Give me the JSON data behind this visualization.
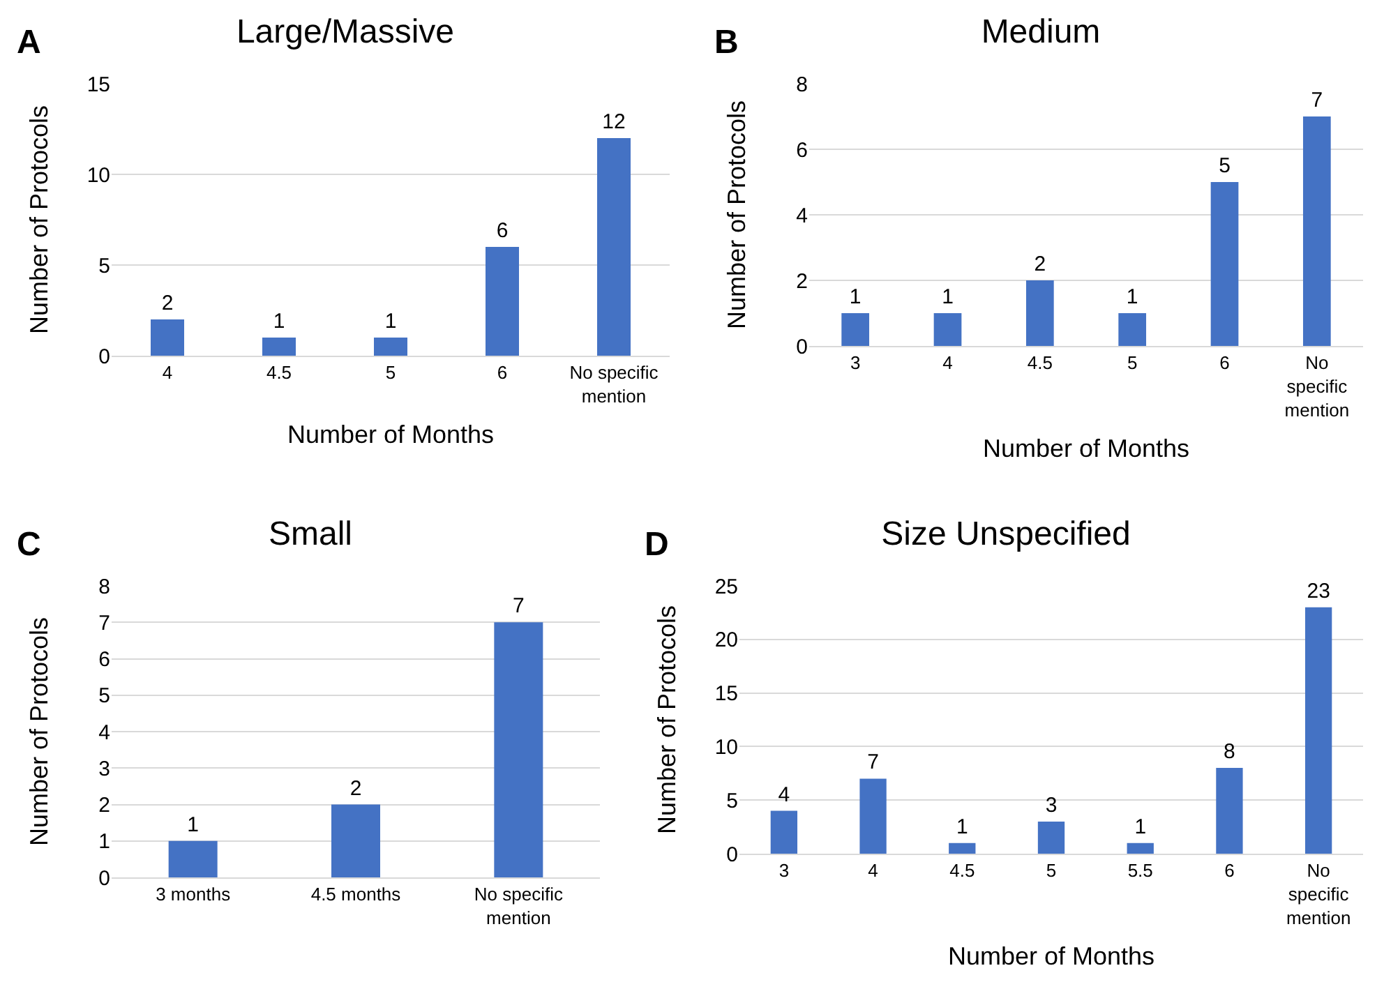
{
  "chart_data": [
    {
      "type": "bar",
      "title": "Large/Massive",
      "xlabel": "Number of Months",
      "ylabel": "Number of Protocols",
      "annotations": [
        "A"
      ],
      "categories": [
        "4",
        "4.5",
        "5",
        "6",
        "No specific mention"
      ],
      "values": [
        2,
        1,
        1,
        6,
        12
      ],
      "color": "#4472c4",
      "ylim": [
        0,
        15
      ],
      "yticks": [
        0,
        5,
        10,
        15
      ],
      "grid": "y",
      "data_labels": true
    },
    {
      "type": "bar",
      "title": "Medium",
      "xlabel": "Number of Months",
      "ylabel": "Number of Protocols",
      "annotations": [
        "B"
      ],
      "categories": [
        "3",
        "4",
        "4.5",
        "5",
        "6",
        "No specific mention"
      ],
      "values": [
        1,
        1,
        2,
        1,
        5,
        7
      ],
      "color": "#4472c4",
      "ylim": [
        0,
        8
      ],
      "yticks": [
        0,
        2,
        4,
        6,
        8
      ],
      "grid": "y",
      "data_labels": true
    },
    {
      "type": "bar",
      "title": "Small",
      "ylabel": "Number of Protocols",
      "annotations": [
        "C"
      ],
      "categories": [
        "3 months",
        "4.5 months",
        "No specific mention"
      ],
      "values": [
        1,
        2,
        7
      ],
      "color": "#4472c4",
      "ylim": [
        0,
        8
      ],
      "yticks": [
        0,
        1,
        2,
        3,
        4,
        5,
        6,
        7,
        8
      ],
      "grid": "y",
      "data_labels": true
    },
    {
      "type": "bar",
      "title": "Size Unspecified",
      "xlabel": "Number of Months",
      "ylabel": "Number of Protocols",
      "annotations": [
        "D"
      ],
      "categories": [
        "3",
        "4",
        "4.5",
        "5",
        "5.5",
        "6",
        "No specific mention"
      ],
      "values": [
        4,
        7,
        1,
        3,
        1,
        8,
        23
      ],
      "color": "#4472c4",
      "ylim": [
        0,
        25
      ],
      "yticks": [
        0,
        5,
        10,
        15,
        20,
        25
      ],
      "grid": "y",
      "data_labels": true
    }
  ]
}
